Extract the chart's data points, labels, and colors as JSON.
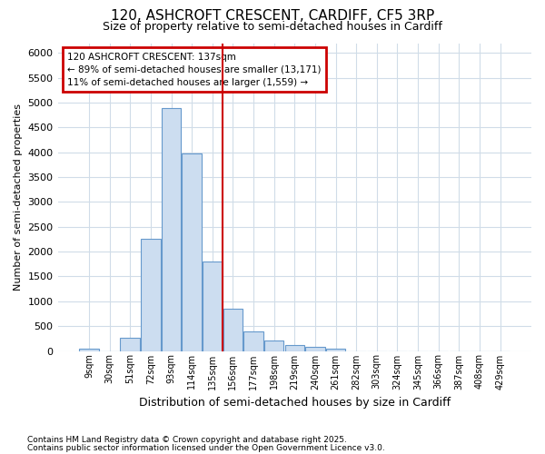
{
  "title1": "120, ASHCROFT CRESCENT, CARDIFF, CF5 3RP",
  "title2": "Size of property relative to semi-detached houses in Cardiff",
  "xlabel": "Distribution of semi-detached houses by size in Cardiff",
  "ylabel": "Number of semi-detached properties",
  "categories": [
    "9sqm",
    "30sqm",
    "51sqm",
    "72sqm",
    "93sqm",
    "114sqm",
    "135sqm",
    "156sqm",
    "177sqm",
    "198sqm",
    "219sqm",
    "240sqm",
    "261sqm",
    "282sqm",
    "303sqm",
    "324sqm",
    "345sqm",
    "366sqm",
    "387sqm",
    "408sqm",
    "429sqm"
  ],
  "values": [
    50,
    0,
    260,
    2250,
    4900,
    3980,
    1800,
    850,
    390,
    210,
    110,
    80,
    50,
    0,
    0,
    0,
    0,
    0,
    0,
    0,
    0
  ],
  "bar_color": "#ccddf0",
  "bar_edge_color": "#6699cc",
  "vline_color": "#cc0000",
  "annotation_title": "120 ASHCROFT CRESCENT: 137sqm",
  "annotation_line1": "← 89% of semi-detached houses are smaller (13,171)",
  "annotation_line2": "11% of semi-detached houses are larger (1,559) →",
  "annotation_box_facecolor": "white",
  "annotation_box_edgecolor": "#cc0000",
  "ylim": [
    0,
    6200
  ],
  "yticks": [
    0,
    500,
    1000,
    1500,
    2000,
    2500,
    3000,
    3500,
    4000,
    4500,
    5000,
    5500,
    6000
  ],
  "footnote1": "Contains HM Land Registry data © Crown copyright and database right 2025.",
  "footnote2": "Contains public sector information licensed under the Open Government Licence v3.0.",
  "bg_color": "#ffffff",
  "plot_bg_color": "#ffffff",
  "grid_color": "#d0dce8",
  "title1_fontsize": 11,
  "title2_fontsize": 9
}
